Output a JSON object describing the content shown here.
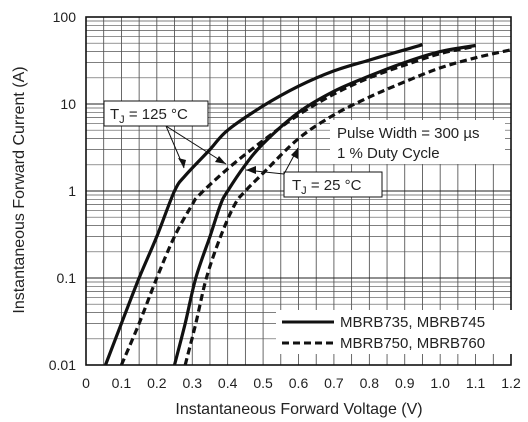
{
  "chart_data": {
    "type": "line",
    "title": "",
    "xlabel": "Instantaneous Forward Voltage (V)",
    "ylabel": "Instantaneous Forward Current (A)",
    "xlim": [
      0,
      1.2
    ],
    "ylim": [
      0.01,
      100
    ],
    "y_scale": "log",
    "grid": true,
    "x_ticks": [
      "0",
      "0.1",
      "0.2",
      "0.3",
      "0.4",
      "0.5",
      "0.6",
      "0.7",
      "0.8",
      "0.9",
      "1.0",
      "1.1",
      "1.2"
    ],
    "y_ticks": [
      "0.01",
      "0.1",
      "1",
      "10",
      "100"
    ],
    "legend": {
      "placement": "bottom-right",
      "entries": [
        {
          "label": "MBRB735, MBRB745",
          "style": "solid"
        },
        {
          "label": "MBRB750, MBRB760",
          "style": "dashed"
        }
      ]
    },
    "annotations": {
      "tj_hot_prefix": "T",
      "tj_hot_sub": "J",
      "tj_hot_value": " = 125 °C",
      "tj_cold_prefix": "T",
      "tj_cold_sub": "J",
      "tj_cold_value": " = 25 °C",
      "pulse_line1": "Pulse Width = 300 µs",
      "pulse_line2": "1 % Duty Cycle"
    },
    "series": [
      {
        "legend": "MBRB735, MBRB745",
        "condition": "TJ = 125 °C",
        "style": "solid",
        "x": [
          0.055,
          0.1,
          0.15,
          0.2,
          0.25,
          0.28,
          0.35,
          0.4,
          0.5,
          0.6,
          0.7,
          0.8,
          0.9,
          0.95
        ],
        "y": [
          0.01,
          0.03,
          0.1,
          0.3,
          1.0,
          1.5,
          3.0,
          5.0,
          9.5,
          16,
          24,
          32,
          42,
          48
        ]
      },
      {
        "legend": "MBRB735, MBRB745",
        "condition": "TJ = 25 °C",
        "style": "solid",
        "x": [
          0.25,
          0.28,
          0.31,
          0.35,
          0.38,
          0.4,
          0.45,
          0.5,
          0.6,
          0.7,
          0.8,
          0.9,
          1.0,
          1.1
        ],
        "y": [
          0.01,
          0.03,
          0.1,
          0.3,
          0.7,
          1.0,
          2.0,
          3.5,
          8.0,
          14,
          21,
          30,
          40,
          47
        ]
      },
      {
        "legend": "MBRB750, MBRB760",
        "condition": "TJ = 125 °C",
        "style": "dashed",
        "x": [
          0.1,
          0.15,
          0.2,
          0.25,
          0.3,
          0.32,
          0.4,
          0.5,
          0.6,
          0.7,
          0.8,
          0.9,
          1.0,
          1.1
        ],
        "y": [
          0.01,
          0.03,
          0.1,
          0.3,
          0.7,
          0.9,
          1.8,
          3.8,
          7.5,
          13,
          20,
          28,
          38,
          46
        ]
      },
      {
        "legend": "MBRB750, MBRB760",
        "condition": "TJ = 25 °C",
        "style": "dashed",
        "x": [
          0.28,
          0.31,
          0.34,
          0.38,
          0.42,
          0.45,
          0.5,
          0.6,
          0.7,
          0.8,
          0.9,
          1.0,
          1.1,
          1.2
        ],
        "y": [
          0.01,
          0.03,
          0.1,
          0.3,
          0.7,
          1.0,
          1.6,
          4.0,
          7.5,
          12,
          18,
          26,
          34,
          42
        ]
      }
    ]
  }
}
